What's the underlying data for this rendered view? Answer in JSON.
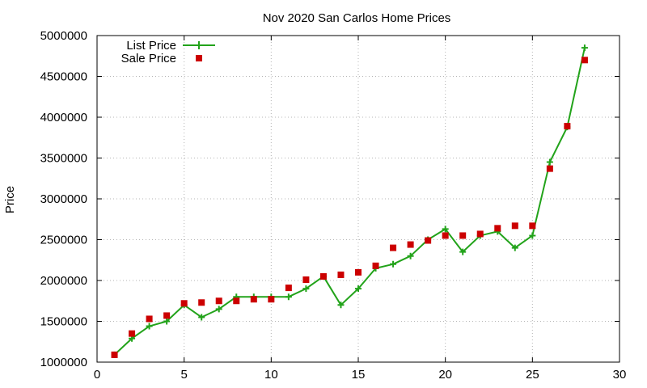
{
  "chart_data": {
    "type": "line",
    "title": "Nov 2020 San Carlos Home Prices",
    "xlabel": "",
    "ylabel": "Price",
    "xlim": [
      0,
      30
    ],
    "ylim": [
      1000000,
      5000000
    ],
    "xticks": [
      0,
      5,
      10,
      15,
      20,
      25,
      30
    ],
    "yticks": [
      1000000,
      1500000,
      2000000,
      2500000,
      3000000,
      3500000,
      4000000,
      4500000,
      5000000
    ],
    "grid": true,
    "legend_position": "top-left",
    "series": [
      {
        "name": "List Price",
        "style": "line-points",
        "marker": "plus",
        "color": "#22a31a",
        "points": [
          [
            1,
            1090000
          ],
          [
            2,
            1290000
          ],
          [
            3,
            1440000
          ],
          [
            4,
            1500000
          ],
          [
            5,
            1700000
          ],
          [
            6,
            1550000
          ],
          [
            7,
            1650000
          ],
          [
            8,
            1800000
          ],
          [
            9,
            1800000
          ],
          [
            10,
            1800000
          ],
          [
            11,
            1800000
          ],
          [
            12,
            1900000
          ],
          [
            13,
            2050000
          ],
          [
            14,
            1700000
          ],
          [
            15,
            1900000
          ],
          [
            16,
            2150000
          ],
          [
            17,
            2200000
          ],
          [
            18,
            2300000
          ],
          [
            19,
            2500000
          ],
          [
            20,
            2630000
          ],
          [
            21,
            2350000
          ],
          [
            22,
            2550000
          ],
          [
            23,
            2600000
          ],
          [
            24,
            2400000
          ],
          [
            25,
            2550000
          ],
          [
            26,
            3450000
          ],
          [
            27,
            3880000
          ],
          [
            28,
            4850000
          ]
        ]
      },
      {
        "name": "Sale Price",
        "style": "points",
        "marker": "square",
        "color": "#cc0000",
        "points": [
          [
            1,
            1090000
          ],
          [
            2,
            1350000
          ],
          [
            3,
            1530000
          ],
          [
            4,
            1570000
          ],
          [
            5,
            1720000
          ],
          [
            6,
            1730000
          ],
          [
            7,
            1750000
          ],
          [
            8,
            1750000
          ],
          [
            9,
            1770000
          ],
          [
            10,
            1770000
          ],
          [
            11,
            1910000
          ],
          [
            12,
            2010000
          ],
          [
            13,
            2050000
          ],
          [
            14,
            2070000
          ],
          [
            15,
            2100000
          ],
          [
            16,
            2180000
          ],
          [
            17,
            2400000
          ],
          [
            18,
            2440000
          ],
          [
            19,
            2490000
          ],
          [
            20,
            2550000
          ],
          [
            21,
            2550000
          ],
          [
            22,
            2570000
          ],
          [
            23,
            2640000
          ],
          [
            24,
            2670000
          ],
          [
            25,
            2670000
          ],
          [
            26,
            3370000
          ],
          [
            27,
            3890000
          ],
          [
            28,
            4700000
          ]
        ]
      }
    ]
  }
}
